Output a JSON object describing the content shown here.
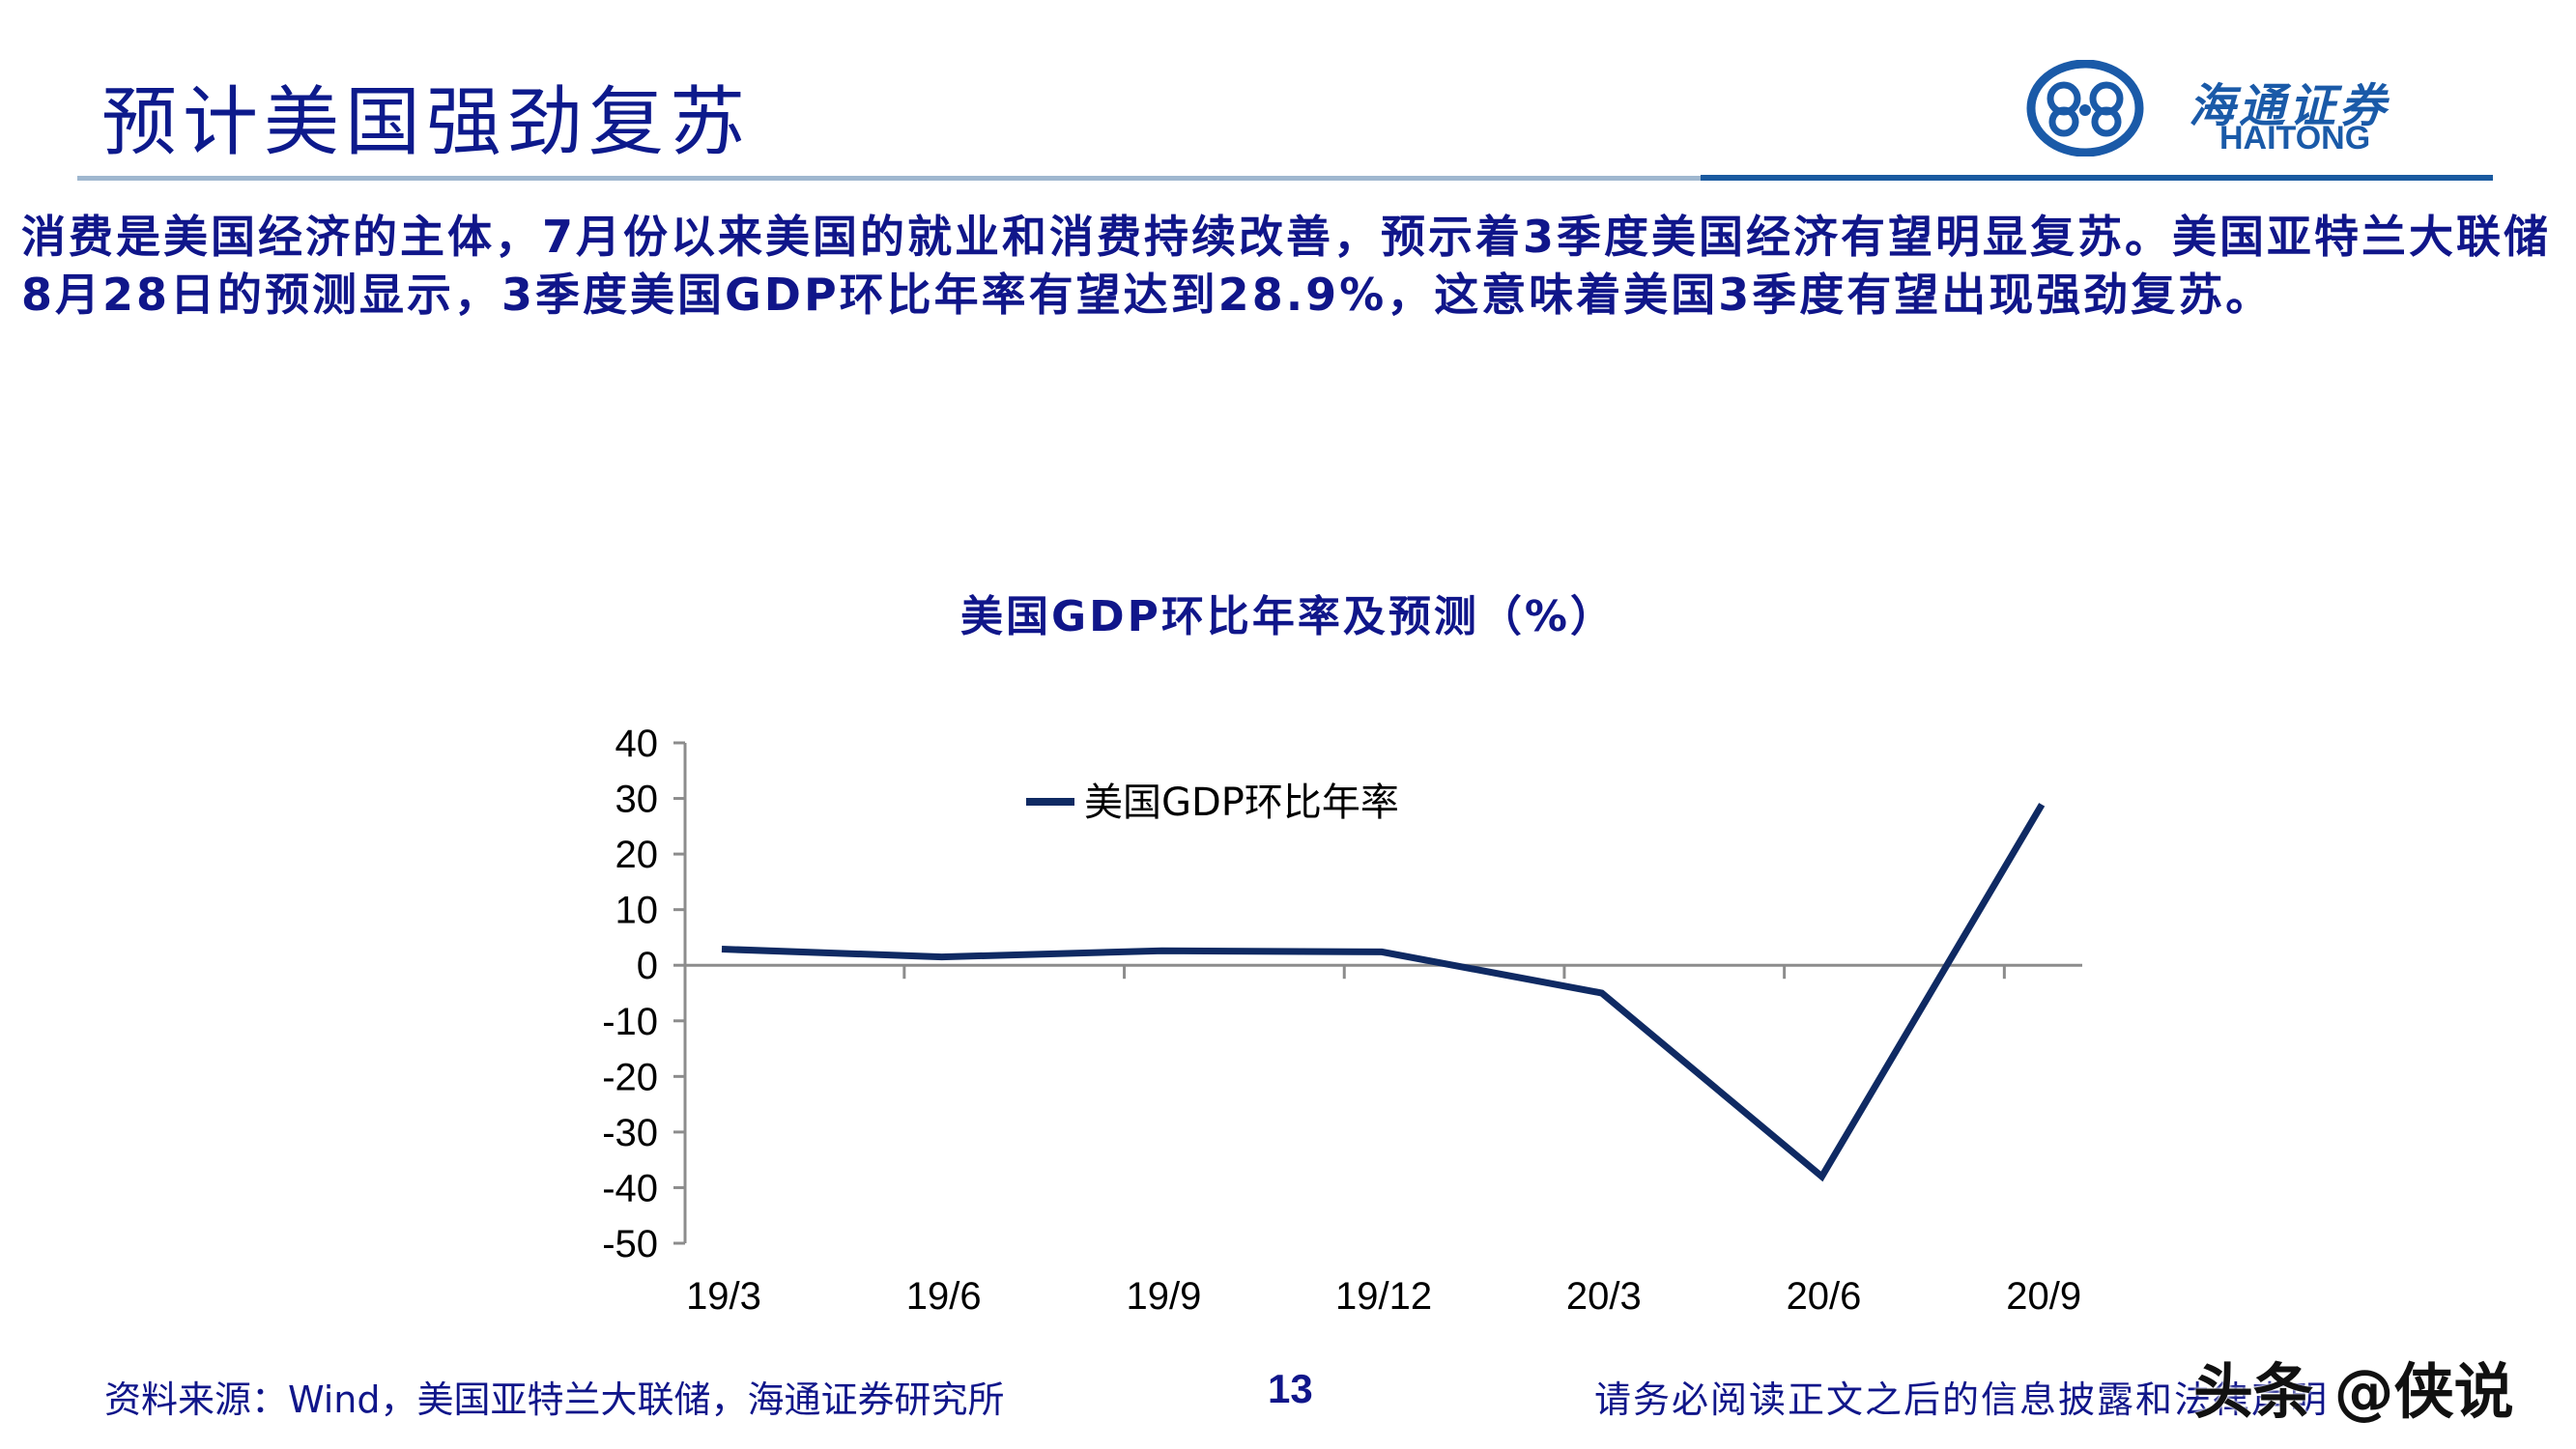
{
  "header": {
    "title": "预计美国强劲复苏",
    "logo_cn": "海通证券",
    "logo_en": "HAITONG"
  },
  "body_text": "消费是美国经济的主体，7月份以来美国的就业和消费持续改善，预示着3季度美国经济有望明显复苏。美国亚特兰大联储8月28日的预测显示，3季度美国GDP环比年率有望达到28.9%，这意味着美国3季度有望出现强劲复苏。",
  "chart_data": {
    "type": "line",
    "title": "美国GDP环比年率及预测（%）",
    "xlabel": "",
    "ylabel": "",
    "categories": [
      "19/3",
      "19/6",
      "19/9",
      "19/12",
      "20/3",
      "20/6",
      "20/9"
    ],
    "series": [
      {
        "name": "美国GDP环比年率",
        "values": [
          2.9,
          1.5,
          2.6,
          2.4,
          -5.0,
          -38.0,
          28.9
        ],
        "color": "#0f2a63"
      }
    ],
    "ylim": [
      -50,
      40
    ],
    "yticks": [
      "40",
      "30",
      "20",
      "10",
      "0",
      "-10",
      "-20",
      "-30",
      "-40",
      "-50"
    ],
    "grid": false,
    "legend_position": "top-center-inside"
  },
  "footer": {
    "source": "资料来源：Wind，美国亚特兰大联储，海通证券研究所",
    "page_number": "13",
    "disclaimer": "请务必阅读正文之后的信息披露和法律声明",
    "watermark": "头条 @侠说"
  },
  "colors": {
    "title": "#0d1a8c",
    "text": "#10168a",
    "brand_blue": "#1a5aa8",
    "line": "#0f2a63",
    "axis": "#8c8c8c"
  }
}
